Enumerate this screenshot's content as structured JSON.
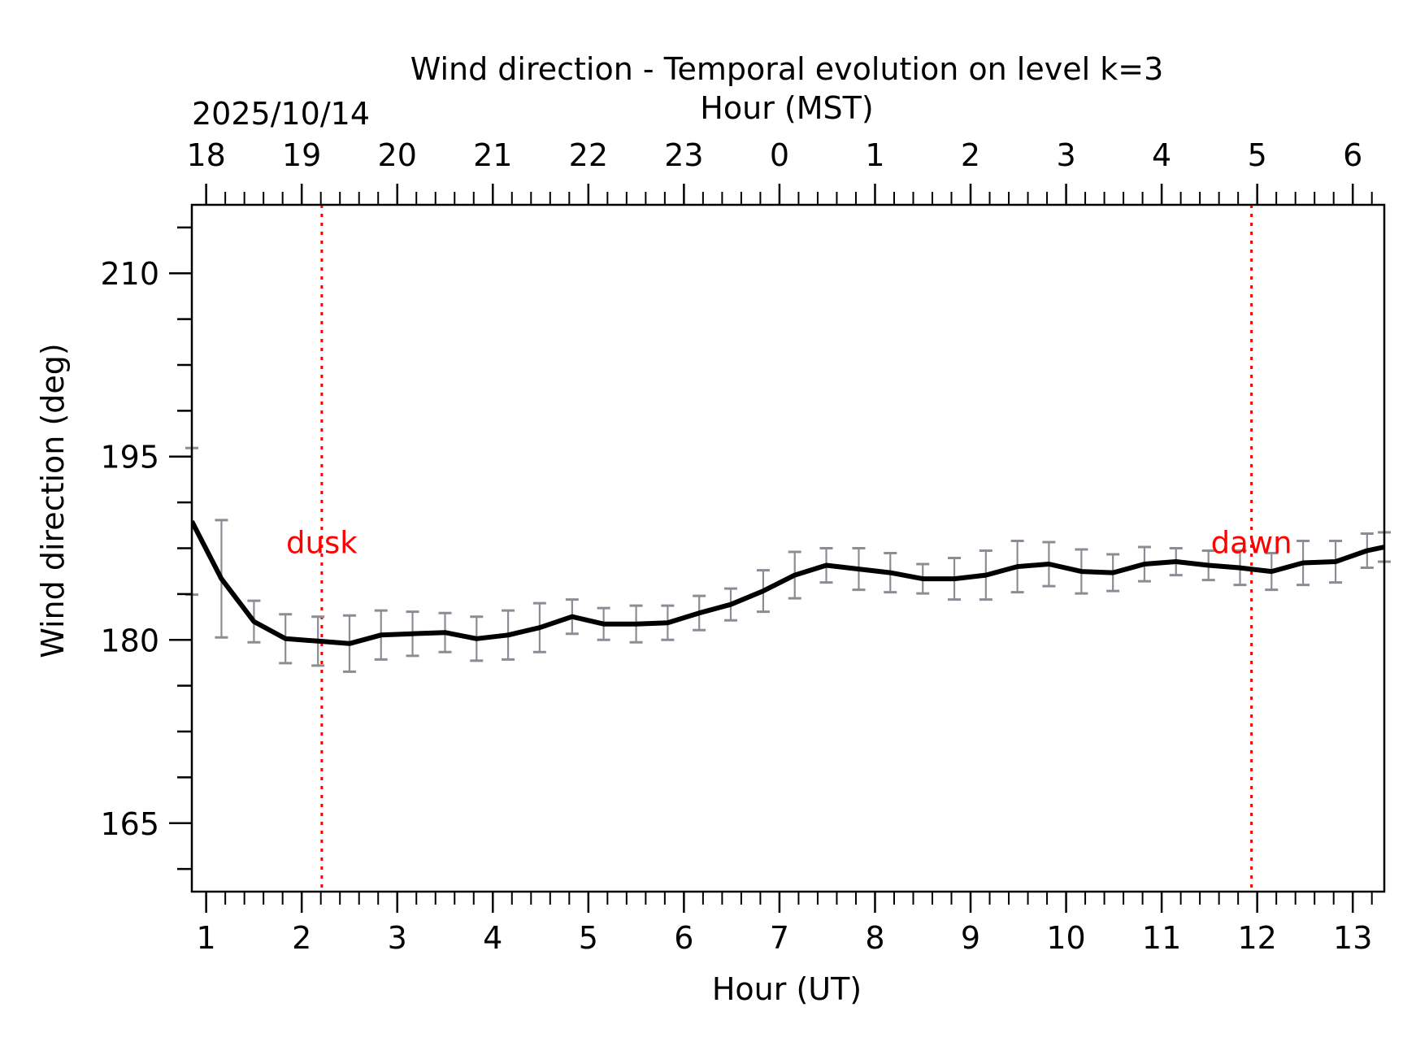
{
  "chart_data": {
    "type": "line",
    "title": "Wind direction - Temporal evolution on level k=3",
    "xlabel": "Hour (UT)",
    "ylabel": "Wind direction (deg)",
    "top_xlabel": "Hour (MST)",
    "date_label": "2025/10/14",
    "xlim": [
      0.85,
      13.33
    ],
    "ylim": [
      159.4,
      215.6
    ],
    "x_ticks": [
      1,
      2,
      3,
      4,
      5,
      6,
      7,
      8,
      9,
      10,
      11,
      12,
      13
    ],
    "x_tick_labels": [
      "1",
      "2",
      "3",
      "4",
      "5",
      "6",
      "7",
      "8",
      "9",
      "10",
      "11",
      "12",
      "13"
    ],
    "top_x_ticks": [
      1,
      2,
      3,
      4,
      5,
      6,
      7,
      8,
      9,
      10,
      11,
      12,
      13
    ],
    "top_x_tick_labels": [
      "18",
      "19",
      "20",
      "21",
      "22",
      "23",
      "0",
      "1",
      "2",
      "3",
      "4",
      "5",
      "6"
    ],
    "y_ticks": [
      165,
      180,
      195,
      210
    ],
    "y_tick_labels": [
      "165",
      "180",
      "195",
      "210"
    ],
    "grid": false,
    "colors": {
      "line": "#000000",
      "errorbar": "#8a8d94",
      "markers": "#ff0000"
    },
    "series": [
      {
        "name": "Wind direction",
        "x": [
          0.85,
          1.16,
          1.5,
          1.83,
          2.17,
          2.5,
          2.83,
          3.16,
          3.5,
          3.83,
          4.16,
          4.49,
          4.83,
          5.16,
          5.5,
          5.83,
          6.16,
          6.49,
          6.83,
          7.16,
          7.49,
          7.83,
          8.16,
          8.5,
          8.83,
          9.16,
          9.49,
          9.82,
          10.16,
          10.49,
          10.82,
          11.15,
          11.49,
          11.82,
          12.15,
          12.48,
          12.82,
          13.15,
          13.33
        ],
        "values": [
          189.7,
          185.0,
          181.5,
          180.1,
          179.9,
          179.7,
          180.4,
          180.5,
          180.6,
          180.1,
          180.4,
          181.0,
          181.9,
          181.3,
          181.3,
          181.4,
          182.2,
          182.9,
          184.0,
          185.3,
          186.1,
          185.8,
          185.5,
          185.0,
          185.0,
          185.3,
          186.0,
          186.2,
          185.6,
          185.5,
          186.2,
          186.4,
          186.1,
          185.9,
          185.6,
          186.3,
          186.4,
          187.3,
          187.6
        ],
        "error": [
          6.0,
          4.8,
          1.7,
          2.0,
          2.0,
          2.3,
          2.0,
          1.8,
          1.6,
          1.8,
          2.0,
          2.0,
          1.4,
          1.3,
          1.5,
          1.4,
          1.4,
          1.3,
          1.7,
          1.9,
          1.4,
          1.7,
          1.6,
          1.2,
          1.7,
          2.0,
          2.1,
          1.8,
          1.8,
          1.5,
          1.4,
          1.1,
          1.2,
          1.4,
          1.5,
          1.8,
          1.7,
          1.4,
          1.2
        ]
      }
    ],
    "annotations": [
      {
        "label": "dusk",
        "x": 2.21
      },
      {
        "label": "dawn",
        "x": 11.94
      }
    ]
  }
}
